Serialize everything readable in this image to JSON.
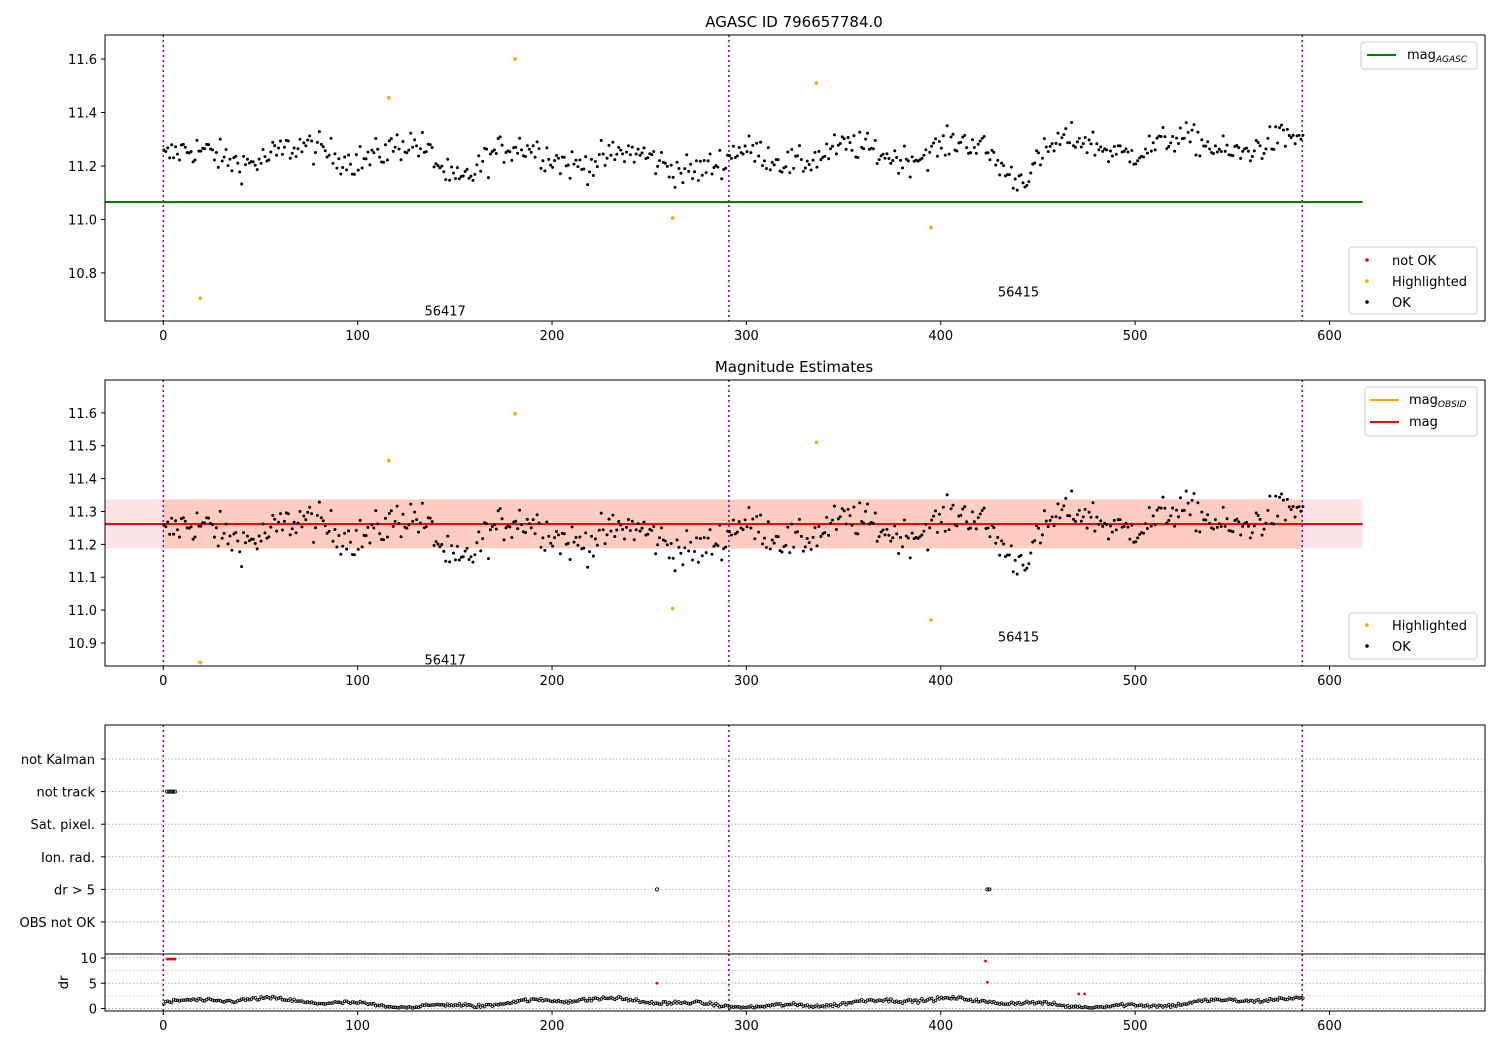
{
  "figure": {
    "title": "AGASC ID 796657784.0",
    "subtitle": "Magnitude Estimates"
  },
  "chart_data": [
    {
      "type": "scatter",
      "title": "AGASC ID 796657784.0",
      "xlim": [
        -30,
        680
      ],
      "ylim": [
        10.62,
        11.69
      ],
      "xticks": [
        0,
        100,
        200,
        300,
        400,
        500,
        600
      ],
      "yticks": [
        10.8,
        11.0,
        11.2,
        11.4,
        11.6
      ],
      "vlines": [
        0,
        291,
        586
      ],
      "obs_labels": [
        {
          "text": "56417",
          "x": 145,
          "y": 10.66
        },
        {
          "text": "56415",
          "x": 440,
          "y": 10.73
        }
      ],
      "hline": {
        "name": "mag",
        "sub": "AGASC",
        "value": 11.065,
        "x_end": 617,
        "color": "#008000"
      },
      "legend_line": [
        {
          "name": "mag",
          "sub": "AGASC",
          "color": "#008000"
        }
      ],
      "legend_points": [
        {
          "name": "not OK",
          "color": "#ff0000"
        },
        {
          "name": "Highlighted",
          "color": "#ffa500"
        },
        {
          "name": "OK",
          "color": "#000000"
        }
      ],
      "highlighted": [
        [
          19,
          10.705
        ],
        [
          116,
          11.455
        ],
        [
          181,
          11.6
        ],
        [
          262,
          11.005
        ],
        [
          336,
          11.51
        ],
        [
          395,
          10.97
        ]
      ],
      "ok_segments": [
        {
          "x0": 0,
          "x1": 291,
          "start": 11.23,
          "mid": 11.26,
          "end": 11.2,
          "dip_at": 150,
          "dip": -0.09,
          "noise": 0.06
        },
        {
          "x0": 292,
          "x1": 586,
          "start": 11.23,
          "mid": 11.27,
          "end": 11.28,
          "dip_at": 440,
          "dip": -0.09,
          "noise": 0.055
        }
      ]
    },
    {
      "type": "scatter",
      "title": "Magnitude Estimates",
      "xlim": [
        -30,
        680
      ],
      "ylim": [
        10.83,
        11.7
      ],
      "xticks": [
        0,
        100,
        200,
        300,
        400,
        500,
        600
      ],
      "yticks": [
        10.9,
        11.0,
        11.1,
        11.2,
        11.3,
        11.4,
        11.5,
        11.6
      ],
      "vlines": [
        0,
        291,
        586
      ],
      "obs_labels": [
        {
          "text": "56417",
          "x": 145,
          "y": 10.85
        },
        {
          "text": "56415",
          "x": 440,
          "y": 10.92
        }
      ],
      "mag_band": {
        "value": 11.262,
        "low": 11.188,
        "high": 11.337,
        "x_end": 617
      },
      "legend_line": [
        {
          "name": "mag",
          "sub": "OBSID",
          "color": "#ffa500"
        },
        {
          "name": "mag",
          "sub": "",
          "color": "#ff0000"
        }
      ],
      "legend_points": [
        {
          "name": "Highlighted",
          "color": "#ffa500"
        },
        {
          "name": "OK",
          "color": "#000000"
        }
      ],
      "highlighted": [
        [
          116,
          11.455
        ],
        [
          181,
          11.597
        ],
        [
          262,
          11.005
        ],
        [
          336,
          11.51
        ],
        [
          395,
          10.97
        ]
      ]
    },
    {
      "type": "scatter",
      "title": "",
      "xlim": [
        -30,
        680
      ],
      "xticks": [
        0,
        100,
        200,
        300,
        400,
        500,
        600
      ],
      "flag_rows": [
        "not Kalman",
        "not track",
        "Sat. pixel.",
        "Ion. rad.",
        "dr > 5",
        "OBS not OK"
      ],
      "flag_points": [
        {
          "row": "not track",
          "x": [
            2,
            3,
            4,
            5,
            6
          ]
        },
        {
          "row": "dr > 5",
          "x": [
            254,
            424,
            425
          ]
        }
      ],
      "dr_ylabel": "dr",
      "dr_ylim": [
        -0.5,
        10.8
      ],
      "dr_yticks": [
        0,
        5,
        10
      ],
      "dr_red": [
        [
          2,
          9.8
        ],
        [
          3,
          9.8
        ],
        [
          4,
          9.8
        ],
        [
          5,
          9.8
        ],
        [
          6,
          9.8
        ],
        [
          254,
          5.0
        ],
        [
          423,
          9.4
        ],
        [
          424,
          5.2
        ],
        [
          471,
          2.9
        ],
        [
          474,
          2.9
        ]
      ]
    }
  ]
}
